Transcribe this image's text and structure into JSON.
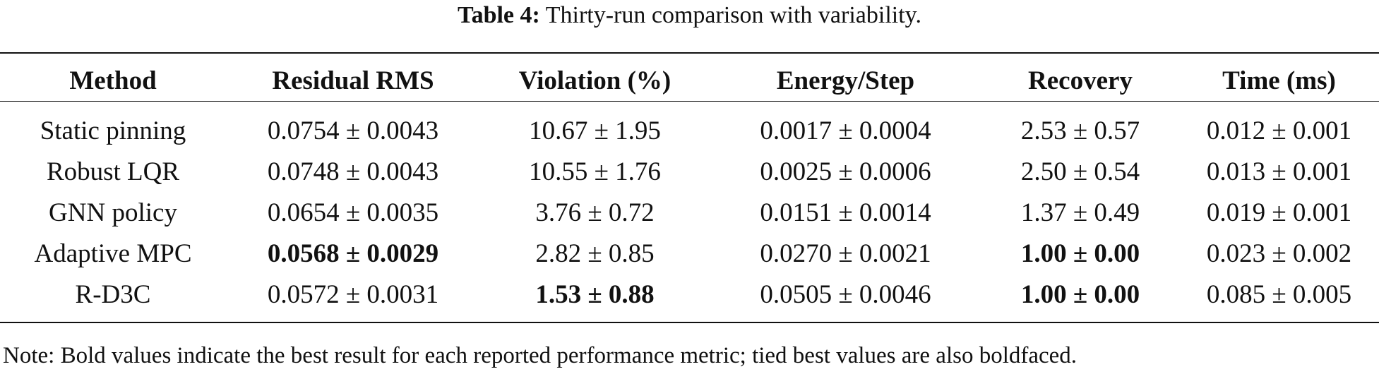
{
  "caption": {
    "label": "Table 4:",
    "text": "Thirty-run comparison with variability."
  },
  "table": {
    "headers": [
      "Method",
      "Residual RMS",
      "Violation (%)",
      "Energy/Step",
      "Recovery",
      "Time (ms)"
    ],
    "rows": [
      {
        "method": "Static pinning",
        "cells": [
          "0.0754 ± 0.0043",
          "10.67 ± 1.95",
          "0.0017 ± 0.0004",
          "2.53 ± 0.57",
          "0.012 ± 0.001"
        ],
        "bold": [
          false,
          false,
          false,
          false,
          false
        ]
      },
      {
        "method": "Robust LQR",
        "cells": [
          "0.0748 ± 0.0043",
          "10.55 ± 1.76",
          "0.0025 ± 0.0006",
          "2.50 ± 0.54",
          "0.013 ± 0.001"
        ],
        "bold": [
          false,
          false,
          false,
          false,
          false
        ]
      },
      {
        "method": "GNN policy",
        "cells": [
          "0.0654 ± 0.0035",
          "3.76 ± 0.72",
          "0.0151 ± 0.0014",
          "1.37 ± 0.49",
          "0.019 ± 0.001"
        ],
        "bold": [
          false,
          false,
          false,
          false,
          false
        ]
      },
      {
        "method": "Adaptive MPC",
        "cells": [
          "0.0568 ± 0.0029",
          "2.82 ± 0.85",
          "0.0270 ± 0.0021",
          "1.00 ± 0.00",
          "0.023 ± 0.002"
        ],
        "bold": [
          true,
          false,
          false,
          true,
          false
        ]
      },
      {
        "method": "R-D3C",
        "cells": [
          "0.0572 ± 0.0031",
          "1.53 ± 0.88",
          "0.0505 ± 0.0046",
          "1.00 ± 0.00",
          "0.085 ± 0.005"
        ],
        "bold": [
          false,
          true,
          false,
          true,
          false
        ]
      }
    ]
  },
  "note": "Note: Bold values indicate the best result for each reported performance metric; tied best values are also boldfaced."
}
